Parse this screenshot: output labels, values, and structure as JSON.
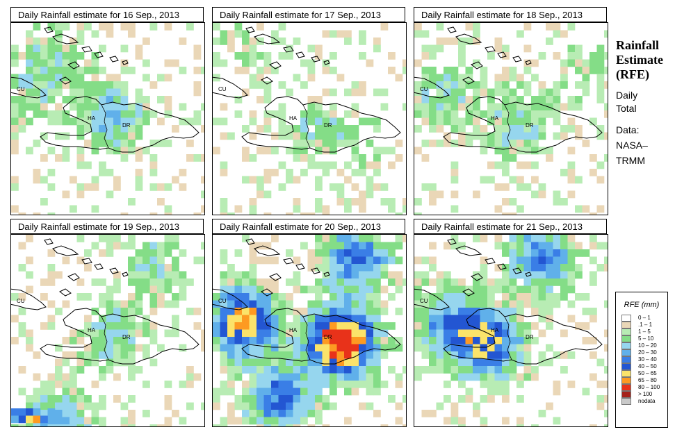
{
  "panels": [
    {
      "title": "Daily Rainfall estimate for  16 Sep., 2013",
      "seed": 16,
      "intensity": 0.45,
      "south_storm": false
    },
    {
      "title": "Daily Rainfall estimate for  17 Sep., 2013",
      "seed": 17,
      "intensity": 0.35,
      "south_storm": false
    },
    {
      "title": "Daily Rainfall estimate for  18 Sep., 2013",
      "seed": 18,
      "intensity": 0.45,
      "south_storm": false
    },
    {
      "title": "Daily Rainfall estimate for  19 Sep., 2013",
      "seed": 19,
      "intensity": 0.55,
      "south_storm": true
    },
    {
      "title": "Daily Rainfall estimate for  20 Sep., 2013",
      "seed": 20,
      "intensity": 1.0,
      "south_storm": false
    },
    {
      "title": "Daily Rainfall estimate for  21 Sep., 2013",
      "seed": 21,
      "intensity": 0.75,
      "south_storm": false
    }
  ],
  "map_labels": {
    "cuba": "CU",
    "haiti": "HA",
    "dominican_republic": "DR"
  },
  "side_panel": {
    "heading_lines": [
      "Rainfall",
      "Estimate",
      "(RFE)"
    ],
    "period_lines": [
      "Daily",
      "Total"
    ],
    "source_lines": [
      "Data:",
      "NASA–",
      "TRMM"
    ]
  },
  "legend": {
    "title": "RFE (mm)",
    "items": [
      {
        "label": "0 – 1",
        "color": "#ffffff"
      },
      {
        "label": ".1 – 1",
        "color": "#ead7b7"
      },
      {
        "label": "1 – 5",
        "color": "#b8ecb4"
      },
      {
        "label": "5 – 10",
        "color": "#84dd87"
      },
      {
        "label": "10 – 20",
        "color": "#96d6ee"
      },
      {
        "label": "20 – 30",
        "color": "#60b0ea"
      },
      {
        "label": "30 – 40",
        "color": "#3a7ee6"
      },
      {
        "label": "40 – 50",
        "color": "#2356d2"
      },
      {
        "label": "50 – 65",
        "color": "#fbe36a"
      },
      {
        "label": "65 – 80",
        "color": "#fd9a22"
      },
      {
        "label": "80 – 100",
        "color": "#e8321a"
      },
      {
        "label": "> 100",
        "color": "#a5231c"
      },
      {
        "label": "nodata",
        "color": "#c9c9c9"
      }
    ]
  }
}
